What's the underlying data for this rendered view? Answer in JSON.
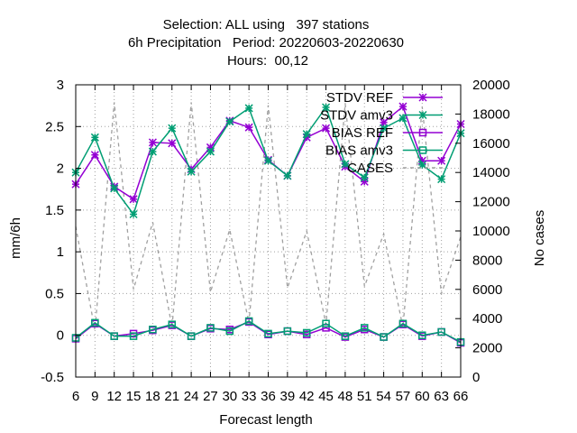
{
  "chart_data": {
    "type": "line",
    "title": [
      "Selection: ALL using   397 stations",
      "6h Precipitation   Period: 20220603-20220630",
      "Hours:  00,12"
    ],
    "xlabel": "Forecast length",
    "ylabel": "mm/6h",
    "y2label": "No cases",
    "x": [
      6,
      9,
      12,
      15,
      18,
      21,
      24,
      27,
      30,
      33,
      36,
      39,
      42,
      45,
      48,
      51,
      54,
      57,
      60,
      63,
      66
    ],
    "ylim": [
      -0.5,
      3
    ],
    "yticks": [
      "-0.5",
      "0",
      "0.5",
      "1",
      "1.5",
      "2",
      "2.5",
      "3"
    ],
    "y2lim": [
      0,
      20000
    ],
    "y2ticks": [
      "0",
      "2000",
      "4000",
      "6000",
      "8000",
      "10000",
      "12000",
      "14000",
      "16000",
      "18000",
      "20000"
    ],
    "grid": true,
    "legend_position": "top-right",
    "series": [
      {
        "name": "STDV REF",
        "axis": "y1",
        "color": "#9400d3",
        "marker": "x-star",
        "dash": "",
        "values": [
          1.81,
          2.16,
          1.78,
          1.63,
          2.31,
          2.3,
          1.99,
          2.25,
          2.57,
          2.49,
          2.1,
          1.91,
          2.37,
          2.48,
          2.02,
          1.84,
          2.55,
          2.74,
          2.09,
          2.09,
          2.53
        ]
      },
      {
        "name": "STDV amv3",
        "axis": "y1",
        "color": "#009e73",
        "marker": "x-star",
        "dash": "",
        "values": [
          1.95,
          2.37,
          1.76,
          1.45,
          2.2,
          2.48,
          1.96,
          2.2,
          2.56,
          2.72,
          2.09,
          1.91,
          2.41,
          2.73,
          2.05,
          1.89,
          2.48,
          2.6,
          2.04,
          1.87,
          2.42
        ]
      },
      {
        "name": "BIAS REF",
        "axis": "y1",
        "color": "#9400d3",
        "marker": "square",
        "dash": "",
        "values": [
          -0.04,
          0.14,
          -0.01,
          0.02,
          0.06,
          0.12,
          -0.01,
          0.08,
          0.07,
          0.16,
          0.01,
          0.05,
          0.01,
          0.09,
          -0.02,
          0.07,
          -0.02,
          0.13,
          -0.01,
          0.04,
          -0.09
        ]
      },
      {
        "name": "BIAS amv3",
        "axis": "y1",
        "color": "#009e73",
        "marker": "square",
        "dash": "",
        "values": [
          -0.03,
          0.15,
          -0.01,
          -0.01,
          0.07,
          0.13,
          -0.01,
          0.09,
          0.05,
          0.17,
          0.02,
          0.05,
          0.03,
          0.14,
          -0.01,
          0.09,
          -0.02,
          0.14,
          0.0,
          0.04,
          -0.08
        ]
      },
      {
        "name": "CASES",
        "axis": "y2",
        "color": "#a0a0a0",
        "marker": "none",
        "dash": "4,4",
        "values": [
          10300,
          3200,
          18800,
          6000,
          10600,
          3400,
          18800,
          5800,
          10100,
          3700,
          18600,
          6100,
          10000,
          3600,
          18700,
          6200,
          9800,
          3400,
          18500,
          5700,
          9600
        ]
      }
    ]
  }
}
